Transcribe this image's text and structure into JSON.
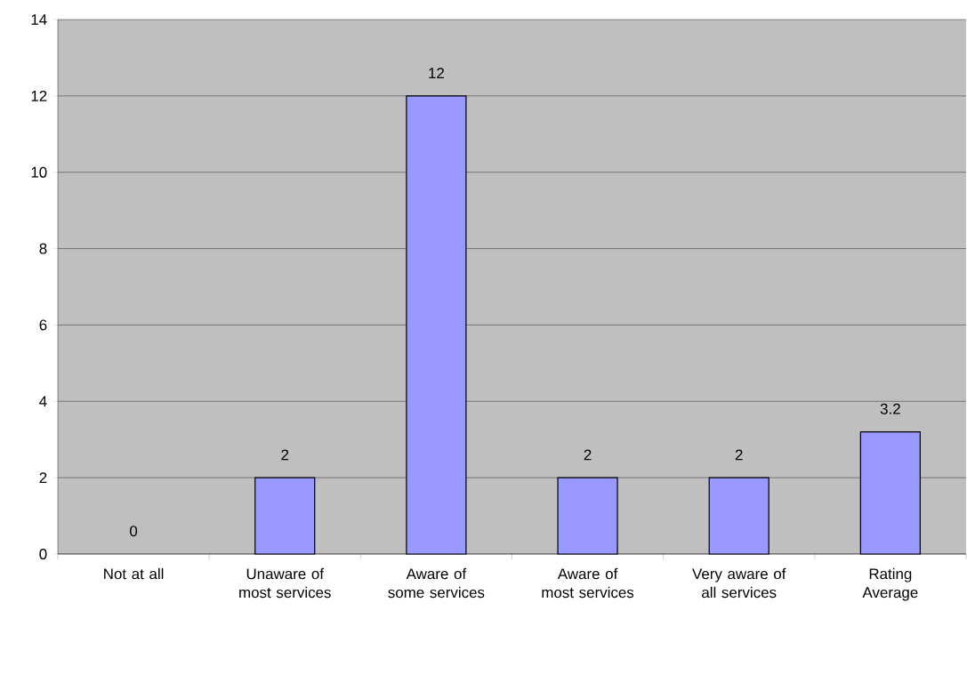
{
  "chart_data": {
    "type": "bar",
    "categories": [
      "Not at all",
      "Unaware of most services",
      "Aware of some services",
      "Aware of most services",
      "Very aware of all services",
      "Rating Average"
    ],
    "values": [
      0,
      2,
      12,
      2,
      2,
      3.2
    ],
    "color": "#9999ff",
    "ylim": [
      0,
      14
    ],
    "yticks": [
      0,
      2,
      4,
      6,
      8,
      10,
      12,
      14
    ],
    "grid": "y",
    "data_labels": true
  }
}
